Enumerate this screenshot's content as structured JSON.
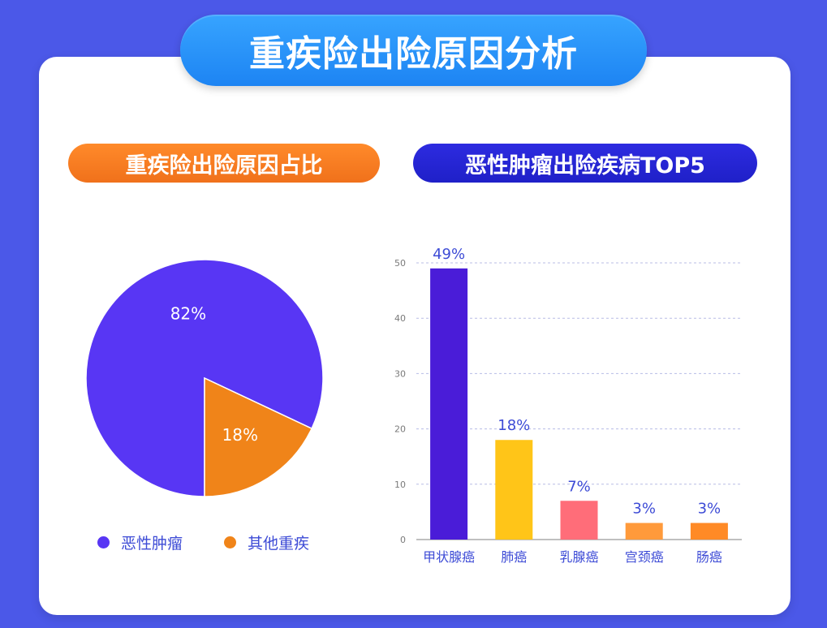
{
  "title": "重疾险出险原因分析",
  "sections": {
    "left_title": "重疾险出险原因占比",
    "right_title": "恶性肿瘤出险疾病TOP5"
  },
  "chart_data": [
    {
      "type": "pie",
      "slices": [
        {
          "label": "恶性肿瘤",
          "value": 82,
          "display": "82%",
          "color": "#5836f4"
        },
        {
          "label": "其他重疾",
          "value": 18,
          "display": "18%",
          "color": "#f08419"
        }
      ],
      "legend": [
        "恶性肿瘤",
        "其他重疾"
      ],
      "legend_position": "bottom"
    },
    {
      "type": "bar",
      "categories": [
        "甲状腺癌",
        "肺癌",
        "乳腺癌",
        "宫颈癌",
        "肠癌"
      ],
      "values": [
        49,
        18,
        7,
        3,
        3
      ],
      "labels": [
        "49%",
        "18%",
        "7%",
        "3%",
        "3%"
      ],
      "colors": [
        "#4a1cd8",
        "#ffc518",
        "#ff6d79",
        "#ff9a3b",
        "#ff8a26"
      ],
      "ylim": [
        0,
        50
      ],
      "yticks": [
        0,
        10,
        20,
        30,
        40,
        50
      ],
      "grid": true
    }
  ],
  "colors": {
    "background": "#4b58e8",
    "label_blue": "#3d4bd6"
  }
}
